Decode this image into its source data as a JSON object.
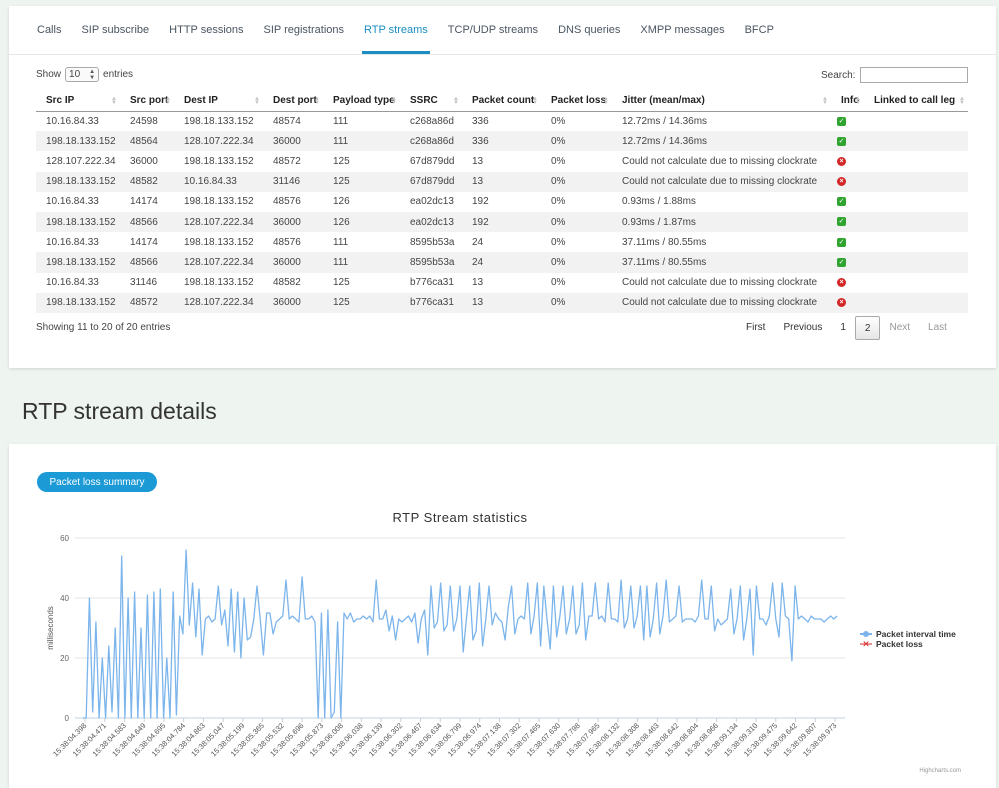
{
  "tabs": [
    "Calls",
    "SIP subscribe",
    "HTTP sessions",
    "SIP registrations",
    "RTP streams",
    "TCP/UDP streams",
    "DNS queries",
    "XMPP messages",
    "BFCP"
  ],
  "active_tab": "RTP streams",
  "show_entries": {
    "prefix": "Show",
    "value": "10",
    "suffix": "entries"
  },
  "search": {
    "label": "Search:",
    "value": ""
  },
  "table": {
    "columns": [
      "Src IP",
      "Src port",
      "Dest IP",
      "Dest port",
      "Payload type",
      "SSRC",
      "Packet count",
      "Packet loss",
      "Jitter (mean/max)",
      "Info",
      "Linked to call leg"
    ],
    "rows": [
      {
        "src_ip": "10.16.84.33",
        "src_port": "24598",
        "dest_ip": "198.18.133.152",
        "dest_port": "48574",
        "payload": "111",
        "ssrc": "c268a86d",
        "count": "336",
        "loss": "0%",
        "jitter": "12.72ms / 14.36ms",
        "info": "ok",
        "linked": ""
      },
      {
        "src_ip": "198.18.133.152",
        "src_port": "48564",
        "dest_ip": "128.107.222.34",
        "dest_port": "36000",
        "payload": "111",
        "ssrc": "c268a86d",
        "count": "336",
        "loss": "0%",
        "jitter": "12.72ms / 14.36ms",
        "info": "ok",
        "linked": ""
      },
      {
        "src_ip": "128.107.222.34",
        "src_port": "36000",
        "dest_ip": "198.18.133.152",
        "dest_port": "48572",
        "payload": "125",
        "ssrc": "67d879dd",
        "count": "13",
        "loss": "0%",
        "jitter": "Could not calculate due to missing clockrate",
        "info": "error",
        "linked": ""
      },
      {
        "src_ip": "198.18.133.152",
        "src_port": "48582",
        "dest_ip": "10.16.84.33",
        "dest_port": "31146",
        "payload": "125",
        "ssrc": "67d879dd",
        "count": "13",
        "loss": "0%",
        "jitter": "Could not calculate due to missing clockrate",
        "info": "error",
        "linked": ""
      },
      {
        "src_ip": "10.16.84.33",
        "src_port": "14174",
        "dest_ip": "198.18.133.152",
        "dest_port": "48576",
        "payload": "126",
        "ssrc": "ea02dc13",
        "count": "192",
        "loss": "0%",
        "jitter": "0.93ms / 1.88ms",
        "info": "ok",
        "linked": ""
      },
      {
        "src_ip": "198.18.133.152",
        "src_port": "48566",
        "dest_ip": "128.107.222.34",
        "dest_port": "36000",
        "payload": "126",
        "ssrc": "ea02dc13",
        "count": "192",
        "loss": "0%",
        "jitter": "0.93ms / 1.87ms",
        "info": "ok",
        "linked": ""
      },
      {
        "src_ip": "10.16.84.33",
        "src_port": "14174",
        "dest_ip": "198.18.133.152",
        "dest_port": "48576",
        "payload": "111",
        "ssrc": "8595b53a",
        "count": "24",
        "loss": "0%",
        "jitter": "37.11ms / 80.55ms",
        "info": "ok",
        "linked": ""
      },
      {
        "src_ip": "198.18.133.152",
        "src_port": "48566",
        "dest_ip": "128.107.222.34",
        "dest_port": "36000",
        "payload": "111",
        "ssrc": "8595b53a",
        "count": "24",
        "loss": "0%",
        "jitter": "37.11ms / 80.55ms",
        "info": "ok",
        "linked": ""
      },
      {
        "src_ip": "10.16.84.33",
        "src_port": "31146",
        "dest_ip": "198.18.133.152",
        "dest_port": "48582",
        "payload": "125",
        "ssrc": "b776ca31",
        "count": "13",
        "loss": "0%",
        "jitter": "Could not calculate due to missing clockrate",
        "info": "error",
        "linked": ""
      },
      {
        "src_ip": "198.18.133.152",
        "src_port": "48572",
        "dest_ip": "128.107.222.34",
        "dest_port": "36000",
        "payload": "125",
        "ssrc": "b776ca31",
        "count": "13",
        "loss": "0%",
        "jitter": "Could not calculate due to missing clockrate",
        "info": "error",
        "linked": ""
      }
    ]
  },
  "table_info": "Showing 11 to 20 of 20 entries",
  "pagination": {
    "first": "First",
    "previous": "Previous",
    "pages": [
      "1",
      "2"
    ],
    "current": "2",
    "next": "Next",
    "last": "Last"
  },
  "section_title": "RTP stream details",
  "packet_loss_button": "Packet loss summary",
  "icons": {
    "ok": "check-square-icon",
    "error": "x-circle-icon"
  },
  "colors": {
    "accent": "#1b8dc2",
    "ok": "#2fa52f",
    "error": "#d32626",
    "series_line": "#7cb5ec",
    "loss_marker": "#d32626"
  },
  "credits": "Highcharts.com",
  "chart_data": {
    "type": "line",
    "title": "RTP Stream statistics",
    "ylabel": "milliseconds",
    "ylim": [
      0,
      60
    ],
    "yticks": [
      0,
      20,
      40,
      60
    ],
    "grid": true,
    "legend_position": "right",
    "xticks": [
      "15:38:04.398",
      "15:38:04.471",
      "15:38:04.583",
      "15:38:04.649",
      "15:38:04.695",
      "15:38:04.784",
      "15:38:04.863",
      "15:38:05.047",
      "15:38:05.199",
      "15:38:05.365",
      "15:38:05.532",
      "15:38:05.696",
      "15:38:05.873",
      "15:38:06.008",
      "15:38:06.038",
      "15:38:06.139",
      "15:38:06.302",
      "15:38:06.467",
      "15:38:06.634",
      "15:38:06.799",
      "15:38:06.974",
      "15:38:07.138",
      "15:38:07.302",
      "15:38:07.465",
      "15:38:07.630",
      "15:38:07.798",
      "15:38:07.965",
      "15:38:08.132",
      "15:38:08.308",
      "15:38:08.463",
      "15:38:08.642",
      "15:38:08.804",
      "15:38:08.966",
      "15:38:09.134",
      "15:38:09.310",
      "15:38:09.475",
      "15:38:09.642",
      "15:38:09.807",
      "15:38:09.973"
    ],
    "series": [
      {
        "name": "Packet interval time",
        "values": [
          0,
          0,
          40,
          2,
          32,
          0,
          20,
          0,
          24,
          2,
          30,
          0,
          54,
          0,
          40,
          0,
          42,
          0,
          30,
          0,
          41,
          0,
          42,
          0,
          43,
          0,
          20,
          0,
          42,
          1,
          34,
          28,
          56,
          31,
          45,
          27,
          43,
          21,
          33,
          34,
          32,
          33,
          44,
          31,
          36,
          24,
          43,
          22,
          42,
          20,
          40,
          26,
          27,
          33,
          44,
          33,
          21,
          35,
          35,
          28,
          32,
          33,
          34,
          46,
          33,
          34,
          33,
          32,
          47,
          33,
          33,
          34,
          32,
          0,
          35,
          0,
          36,
          0,
          2,
          32,
          0,
          35,
          33,
          35,
          32,
          33,
          33,
          34,
          33,
          34,
          32,
          46,
          33,
          33,
          36,
          29,
          34,
          26,
          33,
          32,
          33,
          34,
          32,
          35,
          25,
          33,
          36,
          21,
          44,
          30,
          32,
          45,
          29,
          31,
          44,
          29,
          33,
          44,
          22,
          33,
          44,
          26,
          29,
          45,
          24,
          33,
          44,
          31,
          35,
          33,
          32,
          26,
          37,
          44,
          28,
          33,
          34,
          33,
          45,
          28,
          34,
          45,
          24,
          44,
          33,
          23,
          44,
          27,
          34,
          44,
          28,
          33,
          44,
          28,
          31,
          45,
          26,
          34,
          34,
          45,
          33,
          34,
          32,
          45,
          33,
          33,
          32,
          46,
          30,
          33,
          44,
          30,
          34,
          44,
          26,
          44,
          27,
          33,
          45,
          28,
          34,
          46,
          32,
          33,
          34,
          44,
          32,
          33,
          33,
          33,
          32,
          34,
          46,
          33,
          33,
          44,
          29,
          33,
          31,
          32,
          33,
          43,
          28,
          33,
          44,
          26,
          33,
          43,
          21,
          44,
          33,
          33,
          31,
          34,
          45,
          33,
          27,
          45,
          34,
          33,
          19,
          44,
          33,
          34,
          33,
          32,
          34,
          33,
          33,
          33,
          32,
          33,
          34,
          33,
          34
        ]
      },
      {
        "name": "Packet loss",
        "values": []
      }
    ]
  }
}
